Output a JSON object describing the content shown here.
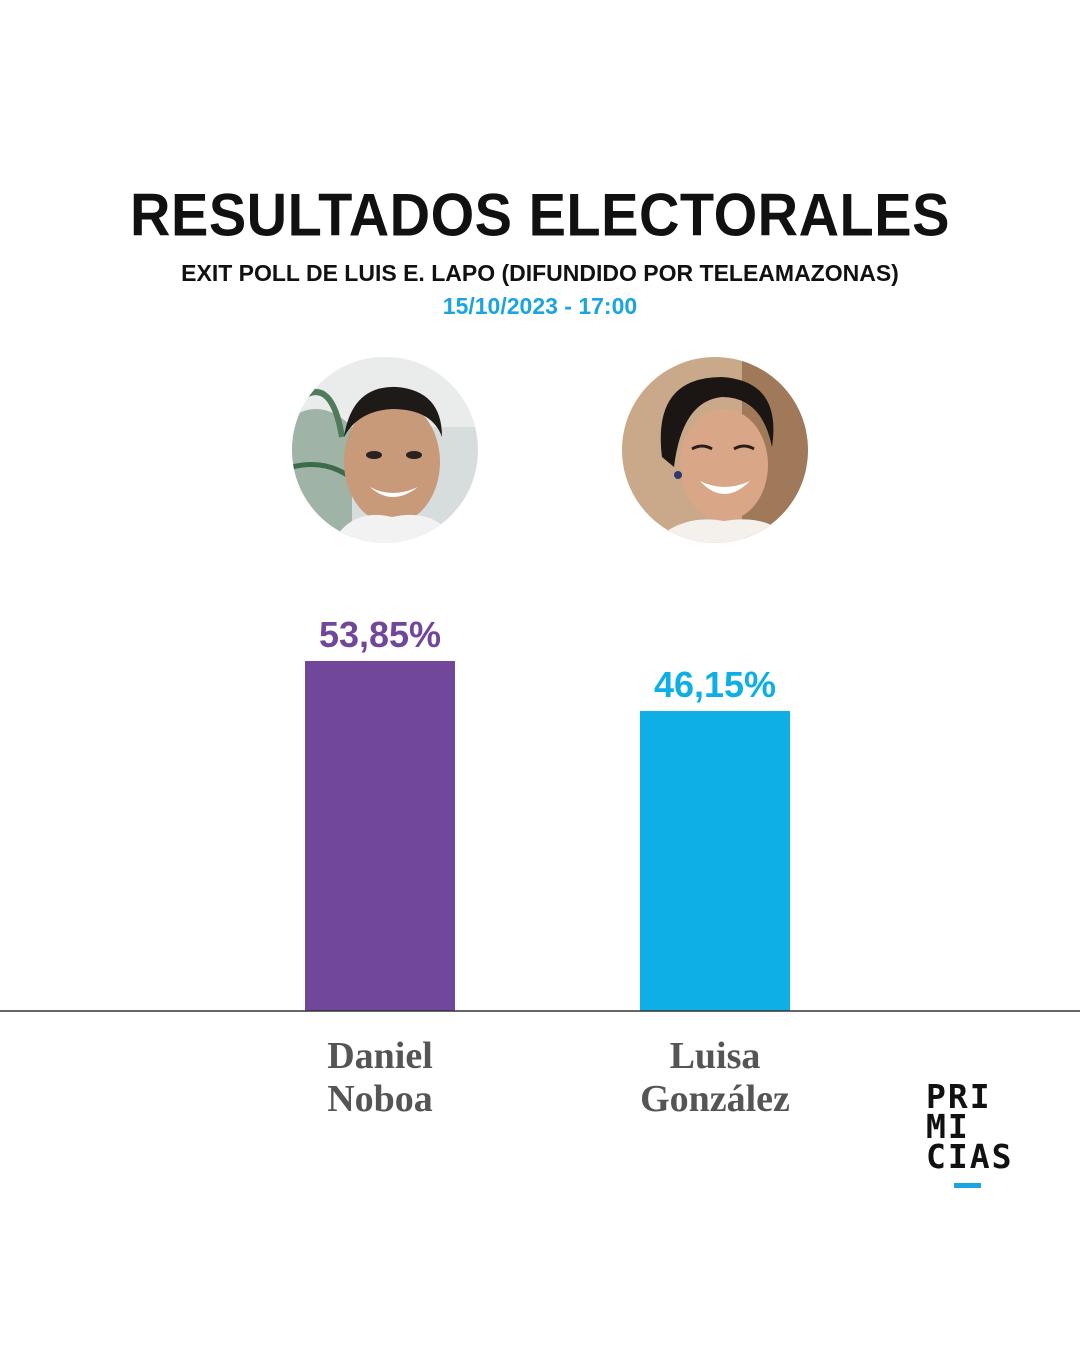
{
  "header": {
    "title": "RESULTADOS ELECTORALES",
    "subtitle": "EXIT POLL DE LUIS E. LAPO (DIFUNDIDO POR TELEAMAZONAS)",
    "datetime": "15/10/2023 - 17:00"
  },
  "colors": {
    "noboa": "#71479b",
    "gonzalez": "#0eafe6",
    "datetime": "#1ba4e0",
    "name_text": "#555555",
    "axis": "#333333"
  },
  "chart_data": {
    "type": "bar",
    "categories": [
      "Daniel Noboa",
      "Luisa González"
    ],
    "name_lines": [
      [
        "Daniel",
        "Noboa"
      ],
      [
        "Luisa",
        "González"
      ]
    ],
    "values": [
      53.85,
      46.15
    ],
    "value_labels": [
      "53,85%",
      "46,15%"
    ],
    "ylim": [
      0,
      100
    ],
    "grid": false,
    "title": "RESULTADOS ELECTORALES",
    "xlabel": "",
    "ylabel": ""
  },
  "avatars": [
    {
      "icon": "candidate-photo-noboa"
    },
    {
      "icon": "candidate-photo-gonzalez"
    }
  ],
  "logo": {
    "lines": [
      "PRI",
      "MI",
      "CIAS"
    ],
    "accent": "#1ba4e0"
  }
}
